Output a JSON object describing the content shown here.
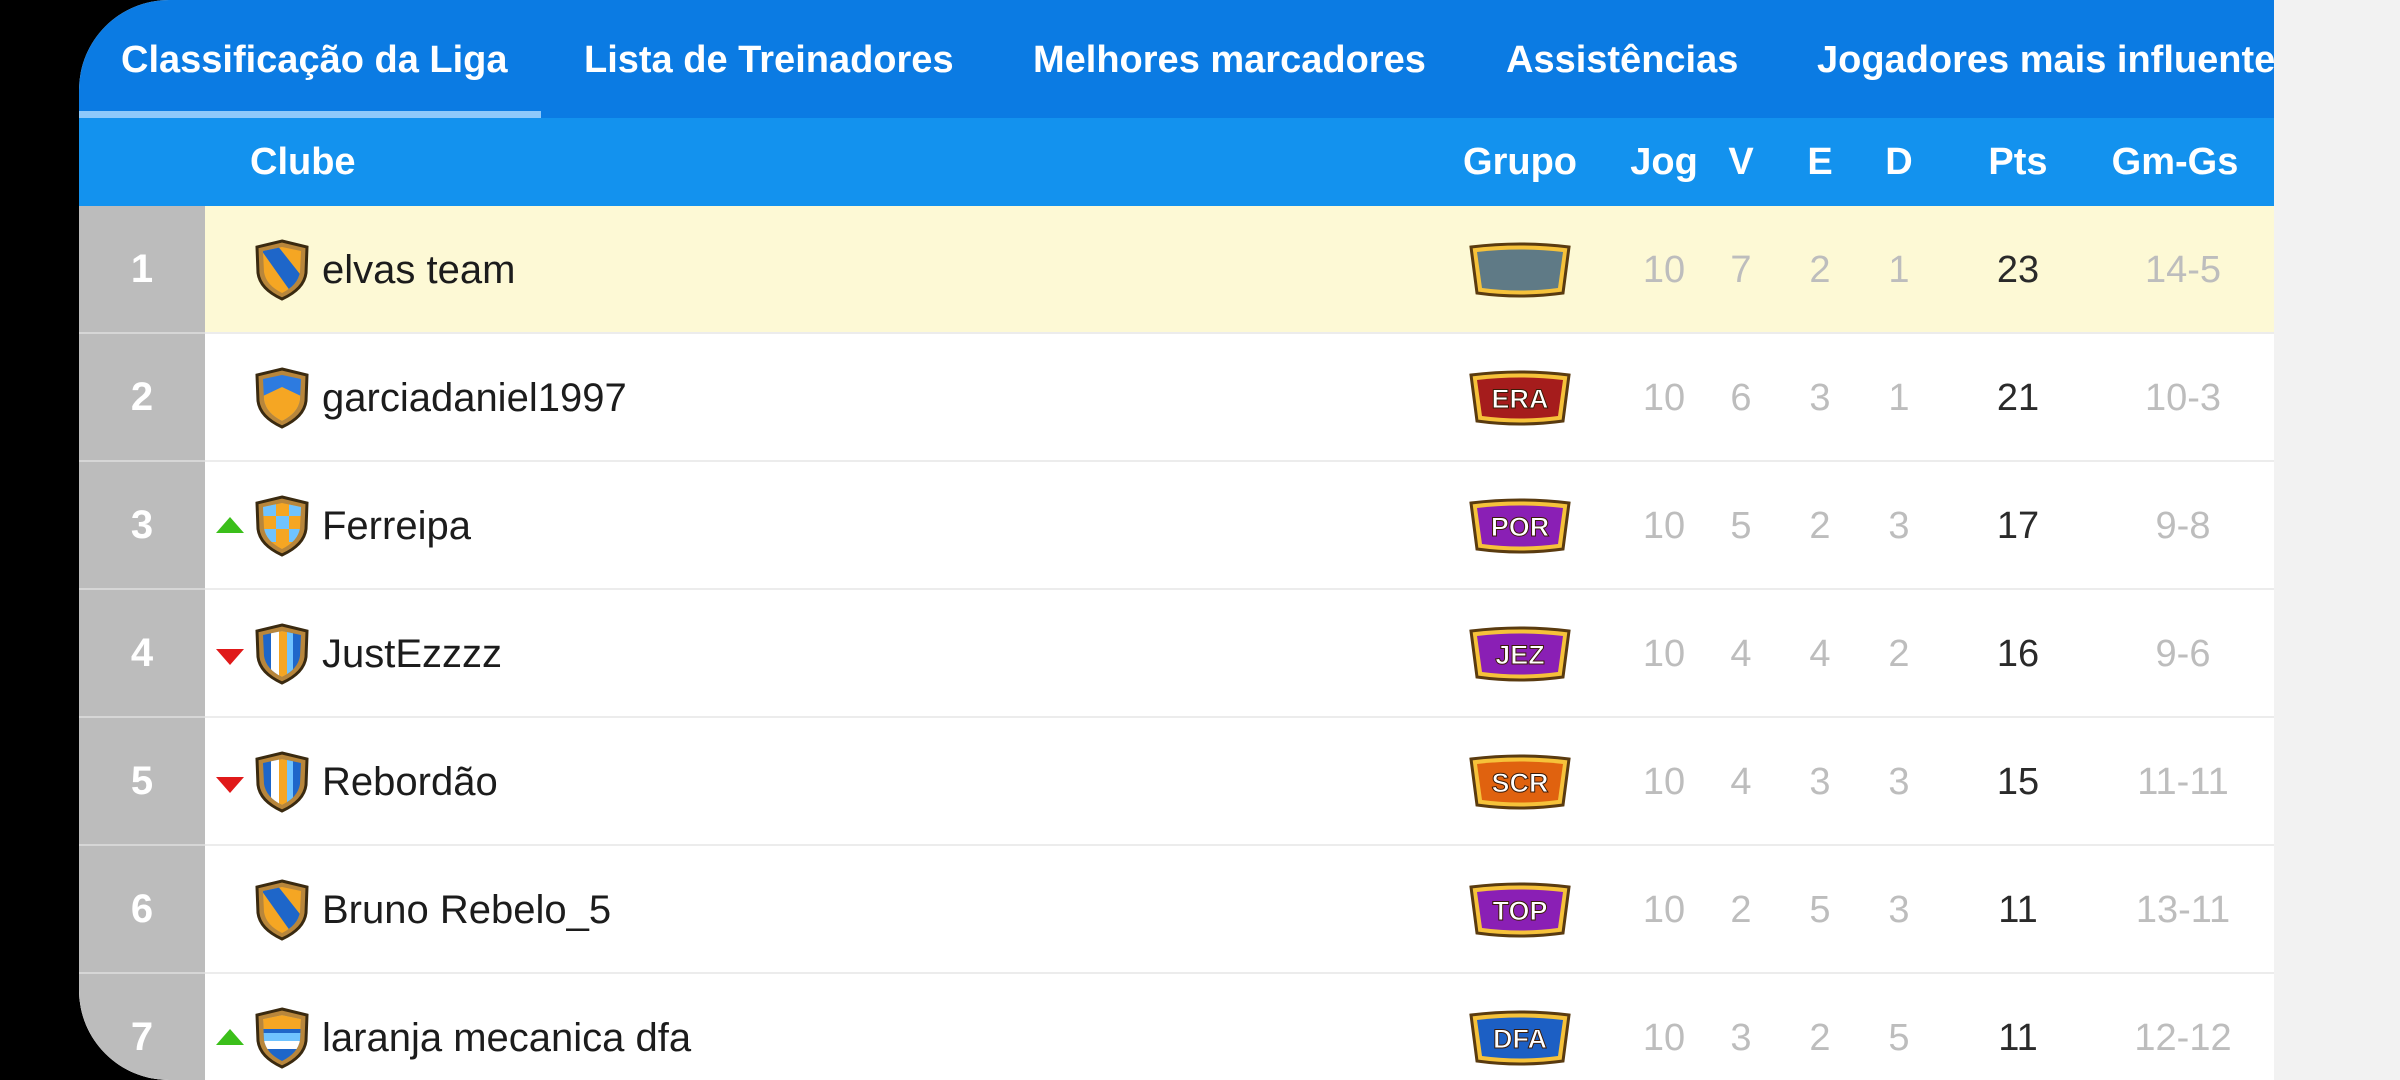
{
  "tabs": [
    {
      "label": "Classificação da Liga",
      "active": true
    },
    {
      "label": "Lista de Treinadores"
    },
    {
      "label": "Melhores marcadores"
    },
    {
      "label": "Assistências"
    },
    {
      "label": "Jogadores mais influentes"
    }
  ],
  "columns": {
    "club": "Clube",
    "group": "Grupo",
    "played": "Jog",
    "wins": "V",
    "draws": "E",
    "losses": "D",
    "points": "Pts",
    "goals": "Gm-Gs"
  },
  "colors": {
    "tab_bar": "#0b7be3",
    "header_bar": "#1392ee",
    "highlight_row": "#fdf9d5",
    "trend_up": "#3bbf1a",
    "trend_down": "#e01919"
  },
  "rows": [
    {
      "pos": "1",
      "trend": "none",
      "name": "elvas team",
      "badge": "",
      "badge_color": "#5f7a86",
      "crest": "crest-diagonal-stripe-icon",
      "played": "10",
      "wins": "7",
      "draws": "2",
      "losses": "1",
      "points": "23",
      "goals": "14-5",
      "highlight": true
    },
    {
      "pos": "2",
      "trend": "none",
      "name": "garciadaniel1997",
      "badge": "ERA",
      "badge_color": "#a51c1c",
      "crest": "crest-chevron-icon",
      "played": "10",
      "wins": "6",
      "draws": "3",
      "losses": "1",
      "points": "21",
      "goals": "10-3"
    },
    {
      "pos": "3",
      "trend": "up",
      "name": "Ferreipa",
      "badge": "POR",
      "badge_color": "#8a1fb5",
      "crest": "crest-checkered-icon",
      "played": "10",
      "wins": "5",
      "draws": "2",
      "losses": "3",
      "points": "17",
      "goals": "9-8"
    },
    {
      "pos": "4",
      "trend": "down",
      "name": "JustEzzzz",
      "badge": "JEZ",
      "badge_color": "#8a1fb5",
      "crest": "crest-vertical-stripes-icon",
      "played": "10",
      "wins": "4",
      "draws": "4",
      "losses": "2",
      "points": "16",
      "goals": "9-6"
    },
    {
      "pos": "5",
      "trend": "down",
      "name": "Rebordão",
      "badge": "SCR",
      "badge_color": "#e0620f",
      "crest": "crest-vertical-stripes-icon",
      "played": "10",
      "wins": "4",
      "draws": "3",
      "losses": "3",
      "points": "15",
      "goals": "11-11"
    },
    {
      "pos": "6",
      "trend": "none",
      "name": "Bruno Rebelo_5",
      "badge": "TOP",
      "badge_color": "#8a1fb5",
      "crest": "crest-diagonal-stripe-icon",
      "played": "10",
      "wins": "2",
      "draws": "5",
      "losses": "3",
      "points": "11",
      "goals": "13-11"
    },
    {
      "pos": "7",
      "trend": "up",
      "name": "laranja mecanica dfa",
      "badge": "DFA",
      "badge_color": "#1c5fc4",
      "crest": "crest-horizontal-stripes-icon",
      "played": "10",
      "wins": "3",
      "draws": "2",
      "losses": "5",
      "points": "11",
      "goals": "12-12"
    }
  ]
}
